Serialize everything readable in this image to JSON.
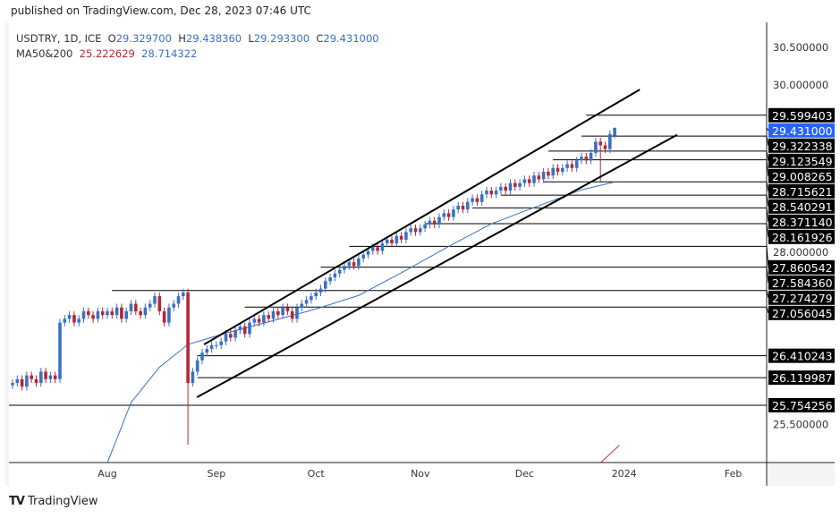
{
  "published": "published on TradingView.com, Dec 28, 2023 07:46 UTC",
  "legend": {
    "symbol": "USDTRY, 1D, ICE",
    "o_label": "O",
    "o": "29.329700",
    "h_label": "H",
    "h": "29.438360",
    "l_label": "L",
    "l": "29.293300",
    "c_label": "C",
    "c": "29.431000",
    "ma_label": "MA50&200",
    "ma1": "25.222629",
    "ma2": "28.714322"
  },
  "brand": "TradingView",
  "colors": {
    "up": "#3b6fc4",
    "down": "#b22833",
    "ma_blue": "#3b6fc4",
    "ma_red": "#c0392b",
    "current": "#2962ff"
  },
  "chart_data": {
    "type": "candlestick",
    "x_tick_labels": [
      {
        "label": "Aug",
        "bar": 20
      },
      {
        "label": "Sep",
        "bar": 43
      },
      {
        "label": "Oct",
        "bar": 64
      },
      {
        "label": "Nov",
        "bar": 86
      },
      {
        "label": "Dec",
        "bar": 108
      },
      {
        "label": "2024",
        "bar": 129
      },
      {
        "label": "Feb",
        "bar": 152
      }
    ],
    "y_tick_labels": [
      "30.500000",
      "30.000000",
      "28.000000",
      "25.500000"
    ],
    "y_ticks": [
      30.5,
      30.0,
      28.0,
      25.5
    ],
    "ylim": [
      24.99,
      30.77
    ],
    "closes": [
      26.05,
      26.1,
      26.0,
      26.15,
      26.1,
      26.05,
      26.2,
      26.1,
      26.15,
      26.1,
      26.85,
      26.9,
      26.95,
      26.85,
      26.9,
      27.0,
      26.95,
      26.9,
      27.0,
      26.95,
      27.0,
      26.95,
      27.05,
      26.9,
      27.0,
      27.1,
      27.0,
      26.95,
      27.05,
      27.1,
      27.2,
      27.0,
      26.85,
      27.05,
      27.1,
      27.2,
      27.25,
      26.05,
      26.2,
      26.35,
      26.45,
      26.5,
      26.55,
      26.55,
      26.6,
      26.7,
      26.65,
      26.75,
      26.8,
      26.7,
      26.85,
      26.9,
      26.85,
      26.95,
      26.9,
      27.0,
      26.95,
      27.05,
      27.0,
      26.9,
      27.05,
      27.1,
      27.15,
      27.2,
      27.25,
      27.3,
      27.4,
      27.45,
      27.5,
      27.55,
      27.6,
      27.65,
      27.6,
      27.7,
      27.75,
      27.8,
      27.85,
      27.8,
      27.9,
      27.95,
      27.9,
      28.0,
      27.95,
      28.05,
      28.1,
      28.05,
      28.1,
      28.15,
      28.2,
      28.15,
      28.25,
      28.3,
      28.25,
      28.35,
      28.4,
      28.35,
      28.45,
      28.5,
      28.45,
      28.55,
      28.6,
      28.55,
      28.6,
      28.65,
      28.6,
      28.7,
      28.65,
      28.7,
      28.75,
      28.7,
      28.8,
      28.75,
      28.85,
      28.8,
      28.9,
      28.85,
      28.9,
      28.95,
      28.9,
      29.0,
      29.05,
      29.0,
      29.1,
      29.25,
      29.2,
      29.15,
      29.35,
      29.431
    ],
    "special_bars": [
      {
        "bar": 10,
        "open": 26.1
      },
      {
        "bar": 37,
        "open": 27.25,
        "high": 27.3,
        "low": 25.23
      },
      {
        "bar": 124,
        "low": 28.72
      },
      {
        "bar": 127,
        "open": 29.3297,
        "high": 29.43836,
        "low": 29.2933,
        "close": 29.431
      }
    ],
    "ma_blue": [
      [
        20,
        24.99
      ],
      [
        25,
        25.79
      ],
      [
        31,
        26.26
      ],
      [
        37,
        26.56
      ],
      [
        45,
        26.71
      ],
      [
        54,
        26.86
      ],
      [
        64,
        27.03
      ],
      [
        73,
        27.21
      ],
      [
        82,
        27.51
      ],
      [
        92,
        27.86
      ],
      [
        101,
        28.16
      ],
      [
        111,
        28.4
      ],
      [
        120,
        28.61
      ],
      [
        127,
        28.714322
      ]
    ],
    "ma_red": [
      [
        124,
        24.99
      ],
      [
        128,
        25.222629
      ]
    ],
    "channel": [
      {
        "from": [
          40.4,
          26.56
        ],
        "to": [
          132.3,
          29.94
        ]
      },
      {
        "from": [
          38.9,
          25.86
        ],
        "to": [
          140.2,
          29.34
        ]
      }
    ],
    "levels": [
      {
        "price": 29.599403,
        "label": "29.599403",
        "from_bar": 121
      },
      {
        "price": 29.322338,
        "label": "29.322338",
        "from_bar": 120
      },
      {
        "price": 29.123549,
        "label": "29.123549",
        "from_bar": 113
      },
      {
        "price": 29.008265,
        "label": "29.008265",
        "from_bar": 114
      },
      {
        "price": 28.715621,
        "label": "28.715621",
        "from_bar": 112
      },
      {
        "price": 28.540291,
        "label": "28.540291",
        "from_bar": 103
      },
      {
        "price": 28.37114,
        "label": "28.371140",
        "from_bar": 97
      },
      {
        "price": 28.161926,
        "label": "28.161926",
        "from_bar": 87
      },
      {
        "price": 27.860542,
        "label": "27.860542",
        "from_bar": 71
      },
      {
        "price": 27.58436,
        "label": "27.584360",
        "from_bar": 65
      },
      {
        "price": 27.274279,
        "label": "27.274279",
        "from_bar": 21
      },
      {
        "price": 27.056045,
        "label": "27.056045",
        "from_bar": 49
      },
      {
        "price": 26.410243,
        "label": "26.410243",
        "from_bar": 39
      },
      {
        "price": 26.119987,
        "label": "26.119987",
        "from_bar": 39
      },
      {
        "price": 25.754256,
        "label": "25.754256",
        "from_bar": -1
      }
    ],
    "current_price": {
      "price": 29.431,
      "label": "29.431000"
    }
  }
}
